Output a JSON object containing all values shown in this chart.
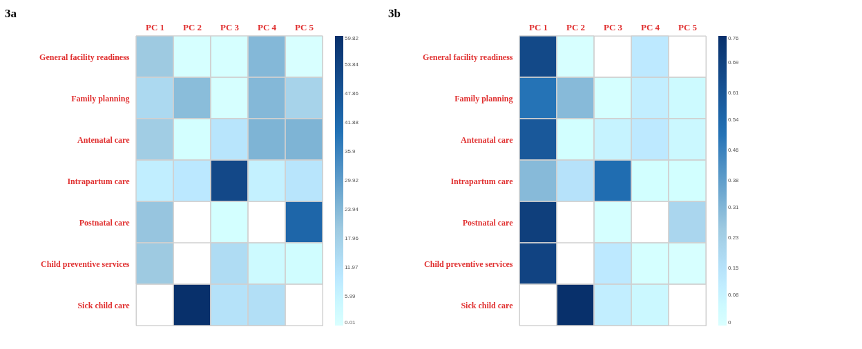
{
  "chart_data": [
    {
      "type": "heatmap",
      "title": "3a",
      "categories": [
        "PC 1",
        "PC 2",
        "PC 3",
        "PC 4",
        "PC 5"
      ],
      "y_categories": [
        "General facility readiness",
        "Family planning",
        "Antenatal care",
        "Intrapartum  care",
        "Postnatal care",
        "Child preventive services",
        "Sick child care"
      ],
      "cells": [
        [
          20,
          1,
          1,
          24,
          0.5
        ],
        [
          15,
          23,
          1,
          24,
          17
        ],
        [
          19,
          2,
          11,
          25,
          25
        ],
        [
          8,
          10,
          52,
          7,
          11
        ],
        [
          21,
          null,
          2,
          null,
          43
        ],
        [
          20,
          null,
          14,
          4,
          3
        ],
        [
          null,
          59.82,
          12,
          13,
          null
        ]
      ],
      "clim": [
        0.01,
        59.82
      ],
      "cticks": [
        0.01,
        5.99,
        11.97,
        17.96,
        23.94,
        29.92,
        35.9,
        41.88,
        47.86,
        53.84,
        59.82
      ]
    },
    {
      "type": "heatmap",
      "title": "3b",
      "categories": [
        "PC 1",
        "PC 2",
        "PC 3",
        "PC 4",
        "PC 5"
      ],
      "y_categories": [
        "General facility readiness",
        "Family planning",
        "Antenatal care",
        "Intrapartum  care",
        "Postnatal care",
        "Child preventive services",
        "Sick child care"
      ],
      "cells": [
        [
          0.66,
          0.01,
          null,
          0.12,
          null
        ],
        [
          0.5,
          0.3,
          0.02,
          0.1,
          0.05
        ],
        [
          0.6,
          0.03,
          0.08,
          0.12,
          0.06
        ],
        [
          0.3,
          0.15,
          0.52,
          0.03,
          0.03
        ],
        [
          0.7,
          null,
          0.02,
          null,
          0.2
        ],
        [
          0.68,
          null,
          0.12,
          0.02,
          0.01
        ],
        [
          null,
          0.76,
          0.1,
          0.06,
          null
        ]
      ],
      "clim": [
        0,
        0.76
      ],
      "cticks": [
        0,
        0.08,
        0.15,
        0.23,
        0.31,
        0.38,
        0.46,
        0.54,
        0.61,
        0.69,
        0.76
      ]
    }
  ]
}
